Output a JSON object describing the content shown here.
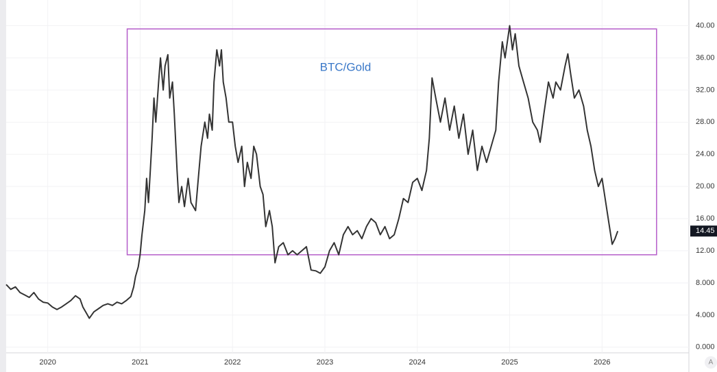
{
  "chart_data": {
    "type": "line",
    "title": "BTC/Gold",
    "color": "#333333",
    "box_color": "#b45cc9",
    "grid": true,
    "grid_color": "#f2f2f4",
    "xlim": [
      2019.55,
      2026.94
    ],
    "xticks": [
      2020,
      2021,
      2022,
      2023,
      2024,
      2025,
      2026
    ],
    "ylim": [
      -0.7,
      43.2
    ],
    "yticks": [
      {
        "value": 0,
        "label": "0.000"
      },
      {
        "value": 4,
        "label": "4.000"
      },
      {
        "value": 8,
        "label": "8.000"
      },
      {
        "value": 12,
        "label": "12.00"
      },
      {
        "value": 16,
        "label": "16.00"
      },
      {
        "value": 20,
        "label": "20.00"
      },
      {
        "value": 24,
        "label": "24.00"
      },
      {
        "value": 28,
        "label": "28.00"
      },
      {
        "value": 32,
        "label": "32.00"
      },
      {
        "value": 36,
        "label": "36.00"
      },
      {
        "value": 40,
        "label": "40.00"
      }
    ],
    "box": {
      "x": [
        2020.86,
        2026.59
      ],
      "y": [
        11.5,
        39.6
      ]
    },
    "last_price": {
      "value": 14.45,
      "label": "14.45"
    },
    "auto_button": "A",
    "x": [
      2019.55,
      2019.6,
      2019.65,
      2019.7,
      2019.75,
      2019.8,
      2019.85,
      2019.9,
      2019.95,
      2020.0,
      2020.05,
      2020.1,
      2020.15,
      2020.2,
      2020.25,
      2020.3,
      2020.35,
      2020.38,
      2020.42,
      2020.45,
      2020.5,
      2020.55,
      2020.6,
      2020.65,
      2020.7,
      2020.75,
      2020.8,
      2020.85,
      2020.9,
      2020.93,
      2020.95,
      2020.98,
      2021.0,
      2021.02,
      2021.05,
      2021.07,
      2021.09,
      2021.11,
      2021.13,
      2021.15,
      2021.17,
      2021.2,
      2021.22,
      2021.25,
      2021.27,
      2021.3,
      2021.32,
      2021.35,
      2021.37,
      2021.4,
      2021.42,
      2021.45,
      2021.48,
      2021.52,
      2021.55,
      2021.6,
      2021.63,
      2021.66,
      2021.7,
      2021.73,
      2021.75,
      2021.78,
      2021.8,
      2021.83,
      2021.86,
      2021.88,
      2021.9,
      2021.93,
      2021.96,
      2022.0,
      2022.03,
      2022.06,
      2022.1,
      2022.13,
      2022.16,
      2022.2,
      2022.23,
      2022.26,
      2022.3,
      2022.33,
      2022.36,
      2022.4,
      2022.43,
      2022.46,
      2022.5,
      2022.55,
      2022.6,
      2022.65,
      2022.7,
      2022.75,
      2022.8,
      2022.85,
      2022.9,
      2022.95,
      2023.0,
      2023.05,
      2023.1,
      2023.15,
      2023.2,
      2023.25,
      2023.3,
      2023.35,
      2023.4,
      2023.45,
      2023.5,
      2023.55,
      2023.6,
      2023.65,
      2023.7,
      2023.75,
      2023.8,
      2023.85,
      2023.9,
      2023.95,
      2024.0,
      2024.05,
      2024.1,
      2024.13,
      2024.16,
      2024.2,
      2024.25,
      2024.3,
      2024.35,
      2024.4,
      2024.45,
      2024.5,
      2024.55,
      2024.6,
      2024.65,
      2024.7,
      2024.75,
      2024.8,
      2024.85,
      2024.88,
      2024.92,
      2024.95,
      2025.0,
      2025.03,
      2025.06,
      2025.1,
      2025.15,
      2025.2,
      2025.25,
      2025.3,
      2025.33,
      2025.37,
      2025.42,
      2025.47,
      2025.5,
      2025.55,
      2025.6,
      2025.63,
      2025.66,
      2025.7,
      2025.75,
      2025.8,
      2025.84,
      2025.88,
      2025.92,
      2025.96,
      2026.0,
      2026.04,
      2026.08,
      2026.11,
      2026.14,
      2026.17
    ],
    "values": [
      7.8,
      7.2,
      7.5,
      6.8,
      6.5,
      6.2,
      6.8,
      6.0,
      5.6,
      5.5,
      5.0,
      4.7,
      5.0,
      5.4,
      5.8,
      6.4,
      6.0,
      5.0,
      4.2,
      3.6,
      4.4,
      4.8,
      5.2,
      5.4,
      5.2,
      5.6,
      5.4,
      5.8,
      6.3,
      7.5,
      8.8,
      10.0,
      11.5,
      14,
      17,
      21,
      18,
      22,
      26,
      31,
      28,
      33,
      36,
      32,
      35,
      36.4,
      31,
      33,
      29,
      22,
      18,
      20,
      17.5,
      21,
      18,
      17,
      21,
      25,
      28,
      26,
      29,
      27,
      33,
      37,
      35,
      37,
      33,
      31,
      28,
      28,
      25,
      23,
      25,
      20,
      23,
      21,
      25,
      24,
      20,
      19,
      15,
      17,
      15,
      10.5,
      12.5,
      13,
      11.5,
      12,
      11.5,
      12,
      12.5,
      9.6,
      9.5,
      9.2,
      10,
      12,
      13,
      11.5,
      14,
      15,
      14,
      14.5,
      13.5,
      15,
      16,
      15.5,
      14,
      15,
      13.5,
      14,
      16,
      18.5,
      18,
      20.5,
      21,
      19.5,
      22,
      26,
      33.5,
      31,
      28,
      31,
      27,
      30,
      26,
      29,
      24,
      27,
      22,
      25,
      23,
      25,
      27,
      33,
      38,
      36,
      40,
      37,
      39,
      35,
      33,
      31,
      28,
      27,
      25.5,
      29,
      33,
      31,
      33,
      32,
      35,
      36.5,
      34,
      31,
      32,
      30,
      27,
      25,
      22,
      20,
      21,
      18,
      15,
      12.8,
      13.5,
      14.45
    ]
  }
}
